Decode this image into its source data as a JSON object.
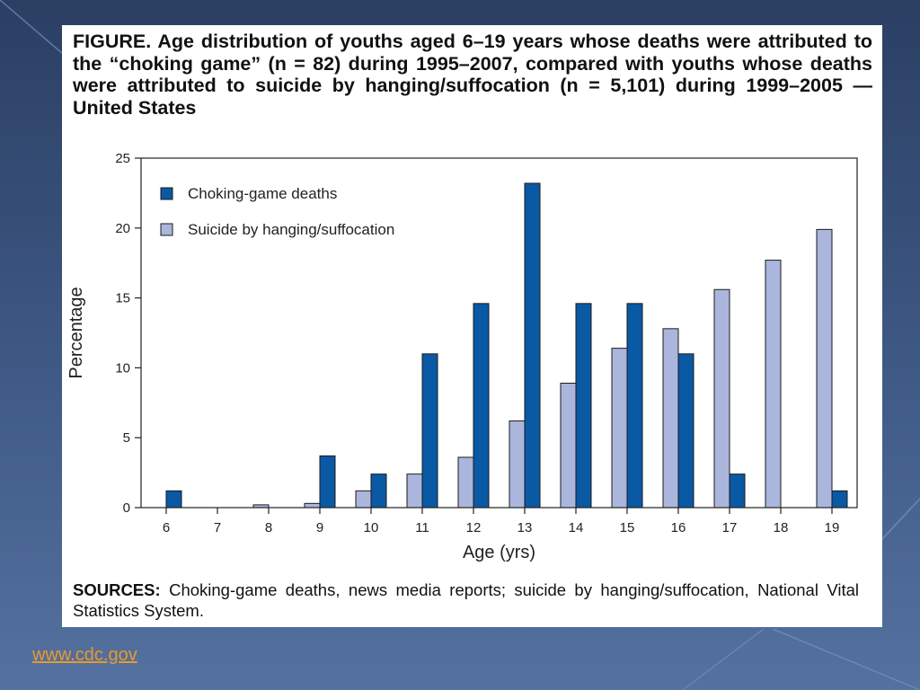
{
  "slide": {
    "footer_link": "www.cdc.gov",
    "background_color": "#34507c",
    "link_color": "#e89a2c"
  },
  "figure": {
    "title": "FIGURE. Age distribution of youths aged 6–19 years whose deaths were attributed to the “choking game” (n = 82) during 1995–2007, compared with youths whose deaths were attributed to suicide by hanging/suffocation (n = 5,101) during 1999–2005 — United States",
    "sources_label": "SOURCES:",
    "sources_text": "Choking-game deaths, news media reports; suicide by hanging/suffocation, National Vital Statistics System."
  },
  "chart_data": {
    "type": "bar",
    "title": "",
    "xlabel": "Age (yrs)",
    "ylabel": "Percentage",
    "categories": [
      "6",
      "7",
      "8",
      "9",
      "10",
      "11",
      "12",
      "13",
      "14",
      "15",
      "16",
      "17",
      "18",
      "19"
    ],
    "series": [
      {
        "name": "Suicide by hanging/suffocation",
        "color": "#aab6dc",
        "values": [
          0,
          0,
          0.2,
          0.3,
          1.2,
          2.4,
          3.6,
          6.2,
          8.9,
          11.4,
          12.8,
          15.6,
          17.7,
          19.9
        ]
      },
      {
        "name": "Choking-game deaths",
        "color": "#0a59a4",
        "values": [
          1.2,
          0,
          0,
          3.7,
          2.4,
          11.0,
          14.6,
          23.2,
          14.6,
          14.6,
          11.0,
          2.4,
          0,
          1.2
        ]
      }
    ],
    "legend_order": [
      1,
      0
    ],
    "yticks": [
      "0",
      "5",
      "10",
      "15",
      "20",
      "25"
    ],
    "ylim": [
      0,
      25
    ],
    "grid": false,
    "legend_position": "top-left"
  }
}
